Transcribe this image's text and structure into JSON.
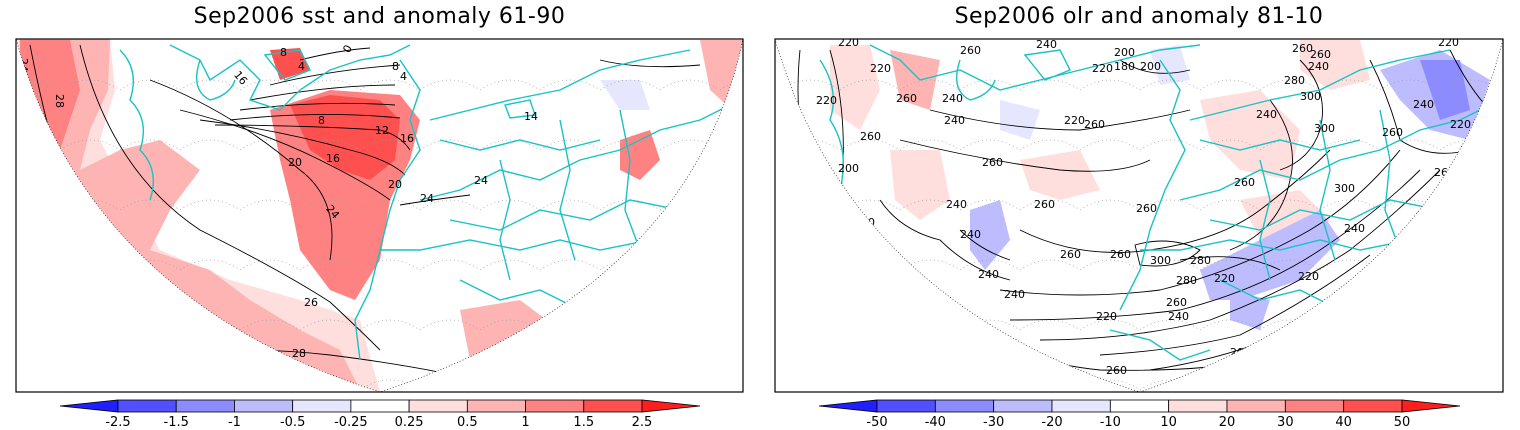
{
  "panels": [
    {
      "title": "Sep2006 sst and anomaly 61-90",
      "colorbar": {
        "ticks": [
          "-2.5",
          "-1.5",
          "-1",
          "-0.5",
          "-0.25",
          "0.25",
          "0.5",
          "1",
          "1.5",
          "2.5"
        ],
        "colors": [
          "#1f1fff",
          "#5050ff",
          "#8c8cff",
          "#bcbcff",
          "#e6e6ff",
          "#ffffff",
          "#ffdede",
          "#ffb4b4",
          "#ff8282",
          "#ff5050",
          "#ff1e1e"
        ]
      },
      "contour_labels": [
        "24",
        "28",
        "16",
        "8",
        "4",
        "0",
        "8",
        "4",
        "8",
        "12",
        "16",
        "20",
        "16",
        "20",
        "24",
        "24",
        "24",
        "26",
        "28",
        "14"
      ]
    },
    {
      "title": "Sep2006 olr and anomaly 81-10",
      "colorbar": {
        "ticks": [
          "-50",
          "-40",
          "-30",
          "-20",
          "-10",
          "10",
          "20",
          "30",
          "40",
          "50"
        ],
        "colors": [
          "#1f1fff",
          "#5050ff",
          "#8c8cff",
          "#bcbcff",
          "#e6e6ff",
          "#ffffff",
          "#ffdede",
          "#ffb4b4",
          "#ff8282",
          "#ff5050",
          "#ff1e1e"
        ]
      },
      "contour_labels": [
        "220",
        "260",
        "220",
        "240",
        "200",
        "180",
        "200",
        "220",
        "260",
        "280",
        "240",
        "300",
        "220",
        "260",
        "240",
        "220",
        "220",
        "260",
        "240",
        "260",
        "300",
        "260",
        "220",
        "200",
        "260",
        "240",
        "260",
        "260",
        "300",
        "260",
        "220",
        "240",
        "240",
        "260",
        "260",
        "300",
        "280",
        "240",
        "280",
        "220",
        "240",
        "240",
        "260",
        "220",
        "260",
        "240",
        "240",
        "220",
        "200",
        "220",
        "260",
        "260",
        "260",
        "220",
        "240"
      ]
    }
  ]
}
